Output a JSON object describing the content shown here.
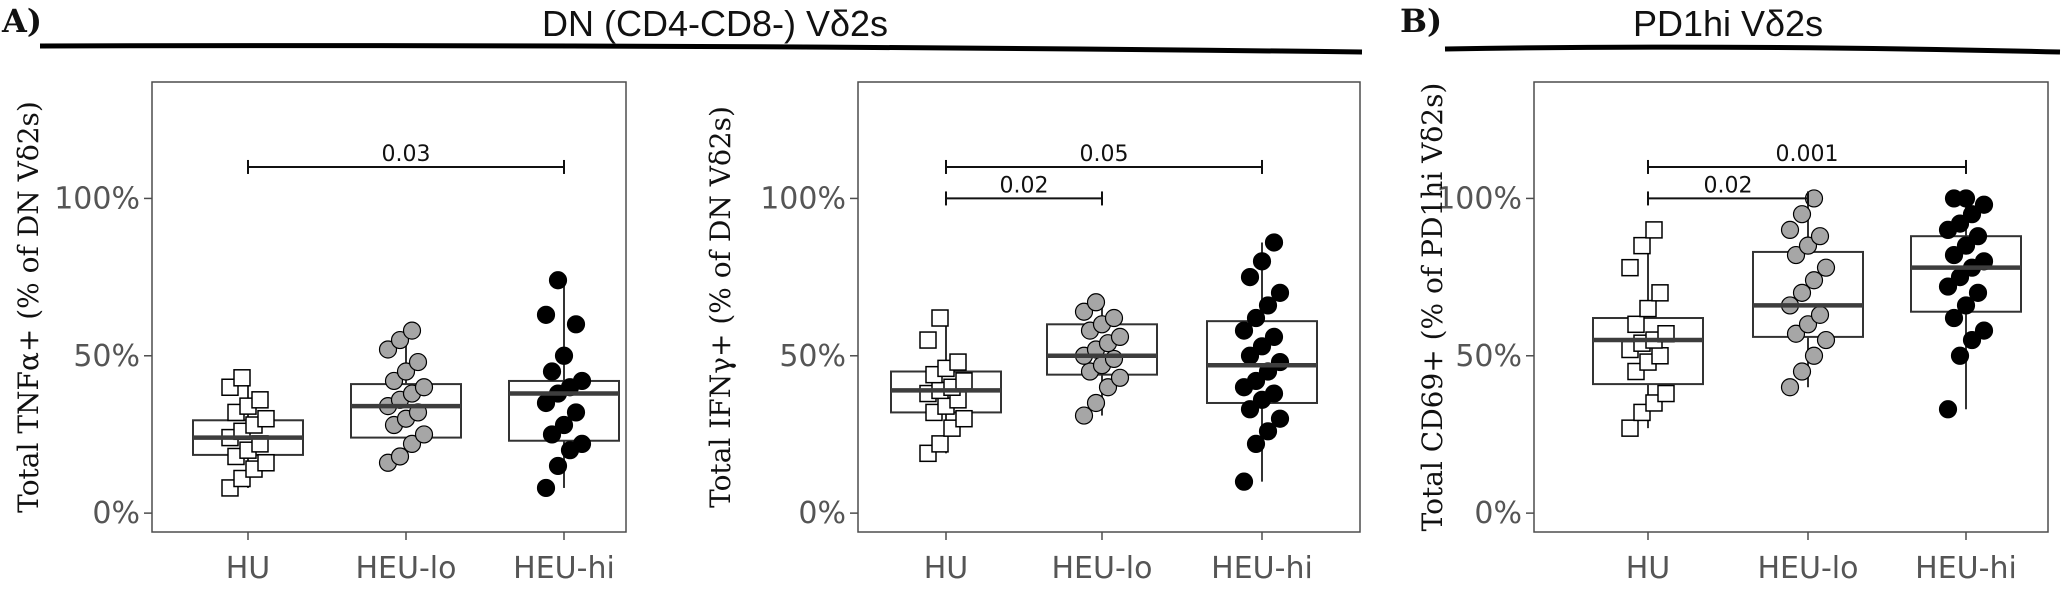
{
  "headers": {
    "a": {
      "letter": "A)",
      "title": "DN (CD4-CD8-) Vδ2s"
    },
    "b": {
      "letter": "B)",
      "title": "PD1hi Vδ2s"
    }
  },
  "colors": {
    "HU": "#ffffff",
    "HEU-lo": "#a6a6a6",
    "HEU-hi": "#000000",
    "box_line": "#333333",
    "median_line": "#3d3d3d"
  },
  "chart_data": [
    {
      "type": "box",
      "ylabel": "Total TNFα+  (% of  DN Vδ2s)",
      "categories": [
        "HU",
        "HEU-lo",
        "HEU-hi"
      ],
      "yticks": [
        0,
        50,
        100
      ],
      "ytick_labels": [
        "0%",
        "50%",
        "100%"
      ],
      "ylim": [
        -6,
        137
      ],
      "boxes": [
        {
          "q1": 18.5,
          "median": 24,
          "q3": 29.5,
          "whisker_low": 8,
          "whisker_high": 43
        },
        {
          "q1": 24,
          "median": 34,
          "q3": 41,
          "whisker_low": 16,
          "whisker_high": 58
        },
        {
          "q1": 23,
          "median": 38,
          "q3": 42,
          "whisker_low": 8,
          "whisker_high": 74
        }
      ],
      "points": [
        [
          8,
          11,
          14,
          16,
          18,
          20,
          22,
          24,
          26,
          28,
          30,
          32,
          34,
          36,
          40,
          43
        ],
        [
          16,
          18,
          22,
          25,
          28,
          30,
          32,
          34,
          36,
          38,
          40,
          42,
          45,
          48,
          52,
          55,
          58
        ],
        [
          8,
          15,
          20,
          22,
          25,
          28,
          32,
          35,
          38,
          40,
          42,
          45,
          50,
          60,
          63,
          74
        ]
      ],
      "comparisons": [
        {
          "from": "HU",
          "to": "HEU-hi",
          "y": 110,
          "label": "0.03"
        }
      ]
    },
    {
      "type": "box",
      "ylabel": "Total IFNγ+ (% of  DN Vδ2s)",
      "categories": [
        "HU",
        "HEU-lo",
        "HEU-hi"
      ],
      "yticks": [
        0,
        50,
        100
      ],
      "ytick_labels": [
        "0%",
        "50%",
        "100%"
      ],
      "ylim": [
        -6,
        137
      ],
      "boxes": [
        {
          "q1": 32,
          "median": 39,
          "q3": 45,
          "whisker_low": 19,
          "whisker_high": 62
        },
        {
          "q1": 44,
          "median": 50,
          "q3": 60,
          "whisker_low": 31,
          "whisker_high": 67
        },
        {
          "q1": 35,
          "median": 47,
          "q3": 61,
          "whisker_low": 10,
          "whisker_high": 86
        }
      ],
      "points": [
        [
          19,
          22,
          27,
          30,
          32,
          34,
          36,
          38,
          39,
          40,
          42,
          44,
          46,
          48,
          55,
          62
        ],
        [
          31,
          35,
          40,
          43,
          45,
          47,
          49,
          50,
          52,
          54,
          56,
          58,
          60,
          62,
          64,
          67
        ],
        [
          10,
          22,
          26,
          30,
          33,
          36,
          38,
          40,
          42,
          45,
          48,
          50,
          53,
          56,
          58,
          62,
          66,
          70,
          75,
          80,
          86
        ]
      ],
      "comparisons": [
        {
          "from": "HU",
          "to": "HEU-lo",
          "y": 100,
          "label": "0.02"
        },
        {
          "from": "HU",
          "to": "HEU-hi",
          "y": 110,
          "label": "0.05"
        }
      ]
    },
    {
      "type": "box",
      "ylabel": "Total CD69+  (% of  PD1hi Vδ2s)",
      "categories": [
        "HU",
        "HEU-lo",
        "HEU-hi"
      ],
      "yticks": [
        0,
        50,
        100
      ],
      "ytick_labels": [
        "0%",
        "50%",
        "100%"
      ],
      "ylim": [
        -6,
        137
      ],
      "boxes": [
        {
          "q1": 41,
          "median": 55,
          "q3": 62,
          "whisker_low": 27,
          "whisker_high": 90
        },
        {
          "q1": 56,
          "median": 66,
          "q3": 83,
          "whisker_low": 40,
          "whisker_high": 100
        },
        {
          "q1": 64,
          "median": 78,
          "q3": 88,
          "whisker_low": 33,
          "whisker_high": 100
        }
      ],
      "points": [
        [
          27,
          32,
          35,
          38,
          45,
          48,
          50,
          52,
          54,
          55,
          57,
          60,
          65,
          70,
          78,
          85,
          90
        ],
        [
          40,
          45,
          50,
          55,
          57,
          60,
          63,
          66,
          70,
          74,
          78,
          82,
          85,
          88,
          90,
          95,
          100
        ],
        [
          33,
          50,
          55,
          58,
          62,
          66,
          70,
          72,
          75,
          78,
          80,
          82,
          85,
          88,
          90,
          92,
          95,
          98,
          100,
          100
        ]
      ],
      "comparisons": [
        {
          "from": "HU",
          "to": "HEU-lo",
          "y": 100,
          "label": "0.02"
        },
        {
          "from": "HU",
          "to": "HEU-hi",
          "y": 110,
          "label": "0.001"
        }
      ]
    }
  ]
}
